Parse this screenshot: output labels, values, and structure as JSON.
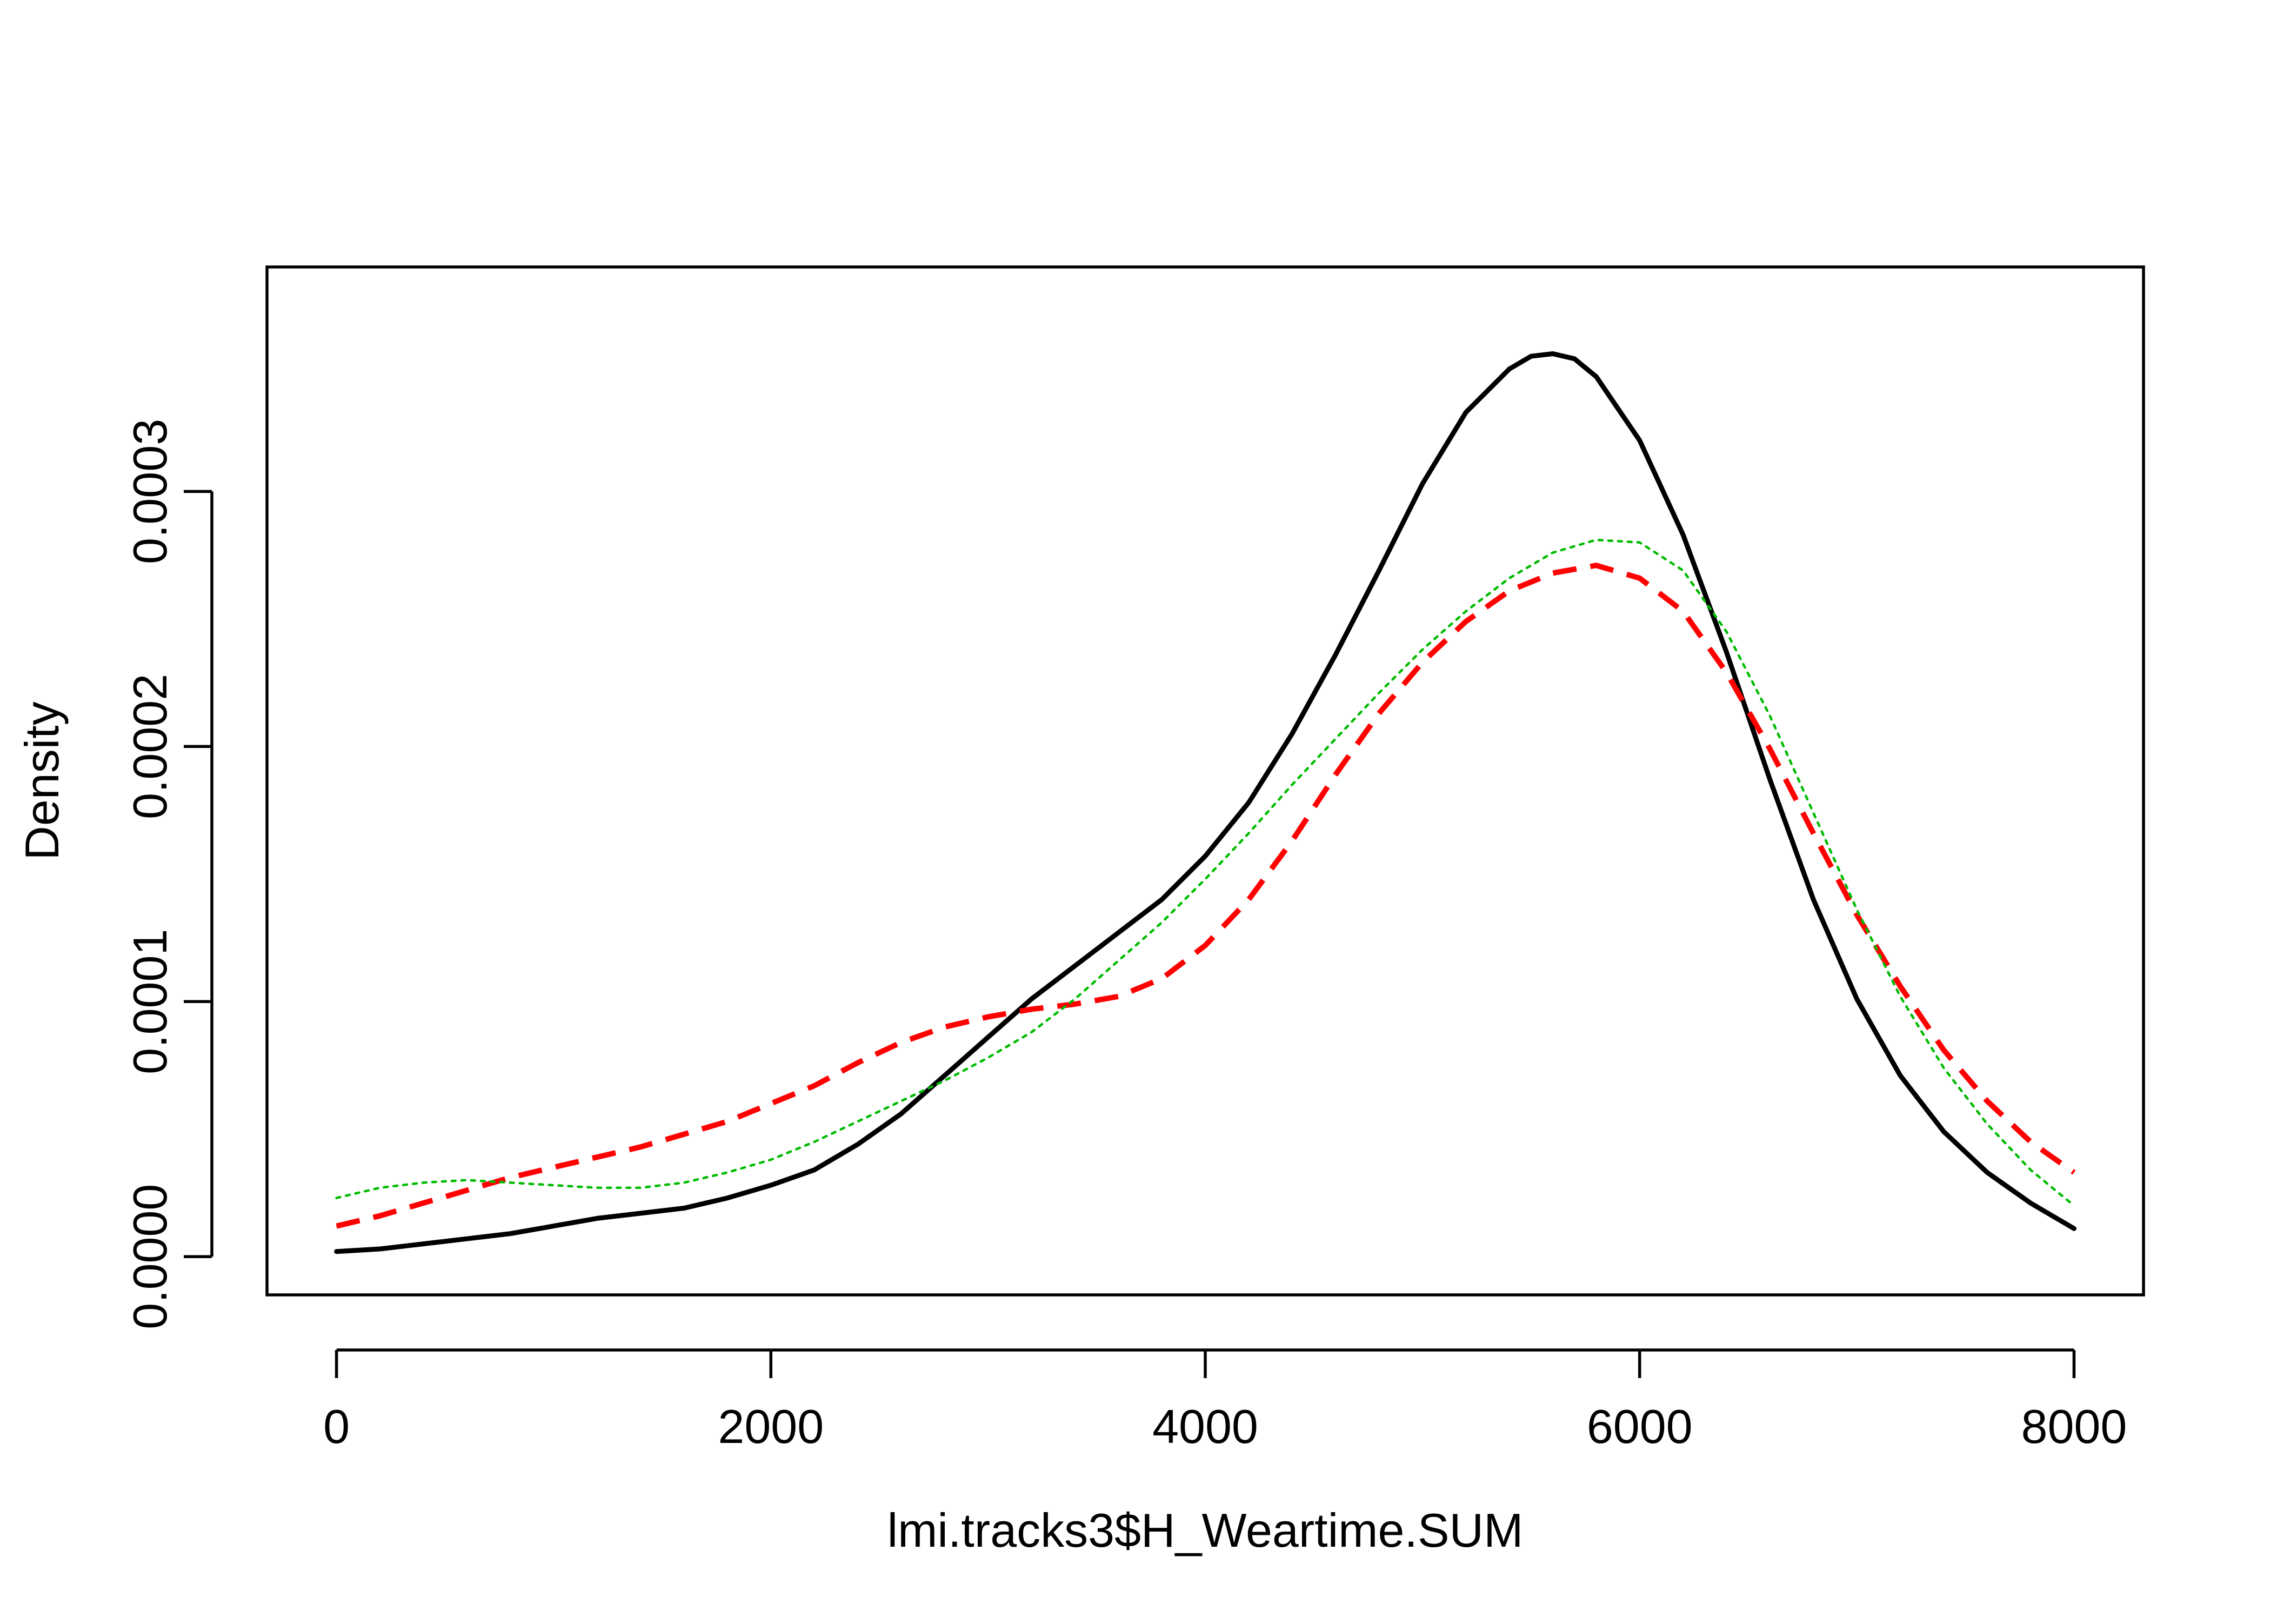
{
  "chart_data": {
    "type": "line",
    "title": "",
    "xlabel": "lmi.tracks3$H_Weartime.SUM",
    "ylabel": "Density",
    "xlim": [
      -320,
      8320
    ],
    "ylim": [
      -1.5e-05,
      0.000388
    ],
    "x_ticks": [
      {
        "value": 0,
        "label": "0"
      },
      {
        "value": 2000,
        "label": "2000"
      },
      {
        "value": 4000,
        "label": "4000"
      },
      {
        "value": 6000,
        "label": "6000"
      },
      {
        "value": 8000,
        "label": "8000"
      }
    ],
    "y_ticks": [
      {
        "value": 0.0,
        "label": "0.0000"
      },
      {
        "value": 0.0001,
        "label": "0.0001"
      },
      {
        "value": 0.0002,
        "label": "0.0002"
      },
      {
        "value": 0.0003,
        "label": "0.0003"
      }
    ],
    "grid": false,
    "legend": "none",
    "series": [
      {
        "name": "black-solid",
        "color": "#000000",
        "style": "solid",
        "points": [
          [
            0,
            2e-06
          ],
          [
            200,
            3e-06
          ],
          [
            400,
            5e-06
          ],
          [
            600,
            7e-06
          ],
          [
            800,
            9e-06
          ],
          [
            1000,
            1.2e-05
          ],
          [
            1200,
            1.5e-05
          ],
          [
            1400,
            1.7e-05
          ],
          [
            1600,
            1.9e-05
          ],
          [
            1800,
            2.3e-05
          ],
          [
            2000,
            2.8e-05
          ],
          [
            2200,
            3.4e-05
          ],
          [
            2400,
            4.4e-05
          ],
          [
            2600,
            5.6e-05
          ],
          [
            2800,
            7.1e-05
          ],
          [
            3000,
            8.6e-05
          ],
          [
            3200,
            0.000101
          ],
          [
            3400,
            0.000114
          ],
          [
            3600,
            0.000127
          ],
          [
            3800,
            0.00014
          ],
          [
            4000,
            0.000157
          ],
          [
            4200,
            0.000178
          ],
          [
            4400,
            0.000205
          ],
          [
            4600,
            0.000236
          ],
          [
            4800,
            0.000269
          ],
          [
            5000,
            0.000303
          ],
          [
            5200,
            0.000331
          ],
          [
            5400,
            0.000348
          ],
          [
            5500,
            0.000353
          ],
          [
            5600,
            0.000354
          ],
          [
            5700,
            0.000352
          ],
          [
            5800,
            0.000345
          ],
          [
            6000,
            0.00032
          ],
          [
            6200,
            0.000283
          ],
          [
            6400,
            0.000237
          ],
          [
            6600,
            0.000187
          ],
          [
            6800,
            0.00014
          ],
          [
            7000,
            0.000101
          ],
          [
            7200,
            7.1e-05
          ],
          [
            7400,
            4.9e-05
          ],
          [
            7600,
            3.3e-05
          ],
          [
            7800,
            2.1e-05
          ],
          [
            8000,
            1.1e-05
          ]
        ]
      },
      {
        "name": "red-dashed",
        "color": "#ff0000",
        "style": "dashed",
        "points": [
          [
            0,
            1.2e-05
          ],
          [
            200,
            1.6e-05
          ],
          [
            400,
            2.1e-05
          ],
          [
            600,
            2.6e-05
          ],
          [
            800,
            3.1e-05
          ],
          [
            1000,
            3.5e-05
          ],
          [
            1200,
            3.9e-05
          ],
          [
            1400,
            4.3e-05
          ],
          [
            1600,
            4.8e-05
          ],
          [
            1800,
            5.3e-05
          ],
          [
            2000,
            6e-05
          ],
          [
            2200,
            6.7e-05
          ],
          [
            2400,
            7.6e-05
          ],
          [
            2600,
            8.4e-05
          ],
          [
            2800,
            9e-05
          ],
          [
            3000,
            9.4e-05
          ],
          [
            3200,
            9.7e-05
          ],
          [
            3400,
            9.9e-05
          ],
          [
            3600,
            0.000102
          ],
          [
            3800,
            0.000109
          ],
          [
            4000,
            0.000122
          ],
          [
            4200,
            0.00014
          ],
          [
            4400,
            0.000163
          ],
          [
            4600,
            0.000189
          ],
          [
            4800,
            0.000213
          ],
          [
            5000,
            0.000233
          ],
          [
            5200,
            0.000249
          ],
          [
            5400,
            0.000261
          ],
          [
            5600,
            0.000268
          ],
          [
            5800,
            0.000271
          ],
          [
            6000,
            0.000266
          ],
          [
            6200,
            0.000253
          ],
          [
            6400,
            0.000229
          ],
          [
            6600,
            0.000199
          ],
          [
            6800,
            0.000166
          ],
          [
            7000,
            0.000134
          ],
          [
            7200,
            0.000106
          ],
          [
            7400,
            8.1e-05
          ],
          [
            7600,
            6.1e-05
          ],
          [
            7800,
            4.5e-05
          ],
          [
            8000,
            3.3e-05
          ]
        ]
      },
      {
        "name": "green-dotted",
        "color": "#00bb00",
        "style": "dotted",
        "points": [
          [
            0,
            2.3e-05
          ],
          [
            200,
            2.7e-05
          ],
          [
            400,
            2.9e-05
          ],
          [
            600,
            3e-05
          ],
          [
            800,
            2.9e-05
          ],
          [
            1000,
            2.8e-05
          ],
          [
            1200,
            2.7e-05
          ],
          [
            1400,
            2.7e-05
          ],
          [
            1600,
            2.9e-05
          ],
          [
            1800,
            3.3e-05
          ],
          [
            2000,
            3.8e-05
          ],
          [
            2200,
            4.5e-05
          ],
          [
            2400,
            5.3e-05
          ],
          [
            2600,
            6.1e-05
          ],
          [
            2800,
            6.9e-05
          ],
          [
            3000,
            7.8e-05
          ],
          [
            3200,
            8.8e-05
          ],
          [
            3400,
            0.000101
          ],
          [
            3600,
            0.000116
          ],
          [
            3800,
            0.000131
          ],
          [
            4000,
            0.000148
          ],
          [
            4200,
            0.000166
          ],
          [
            4400,
            0.000185
          ],
          [
            4600,
            0.000203
          ],
          [
            4800,
            0.000221
          ],
          [
            5000,
            0.000238
          ],
          [
            5200,
            0.000253
          ],
          [
            5400,
            0.000266
          ],
          [
            5600,
            0.000276
          ],
          [
            5800,
            0.000281
          ],
          [
            6000,
            0.00028
          ],
          [
            6200,
            0.000269
          ],
          [
            6400,
            0.000245
          ],
          [
            6600,
            0.000212
          ],
          [
            6800,
            0.000174
          ],
          [
            7000,
            0.000136
          ],
          [
            7200,
            0.000102
          ],
          [
            7400,
            7.4e-05
          ],
          [
            7600,
            5.2e-05
          ],
          [
            7800,
            3.4e-05
          ],
          [
            8000,
            2e-05
          ]
        ]
      }
    ]
  }
}
